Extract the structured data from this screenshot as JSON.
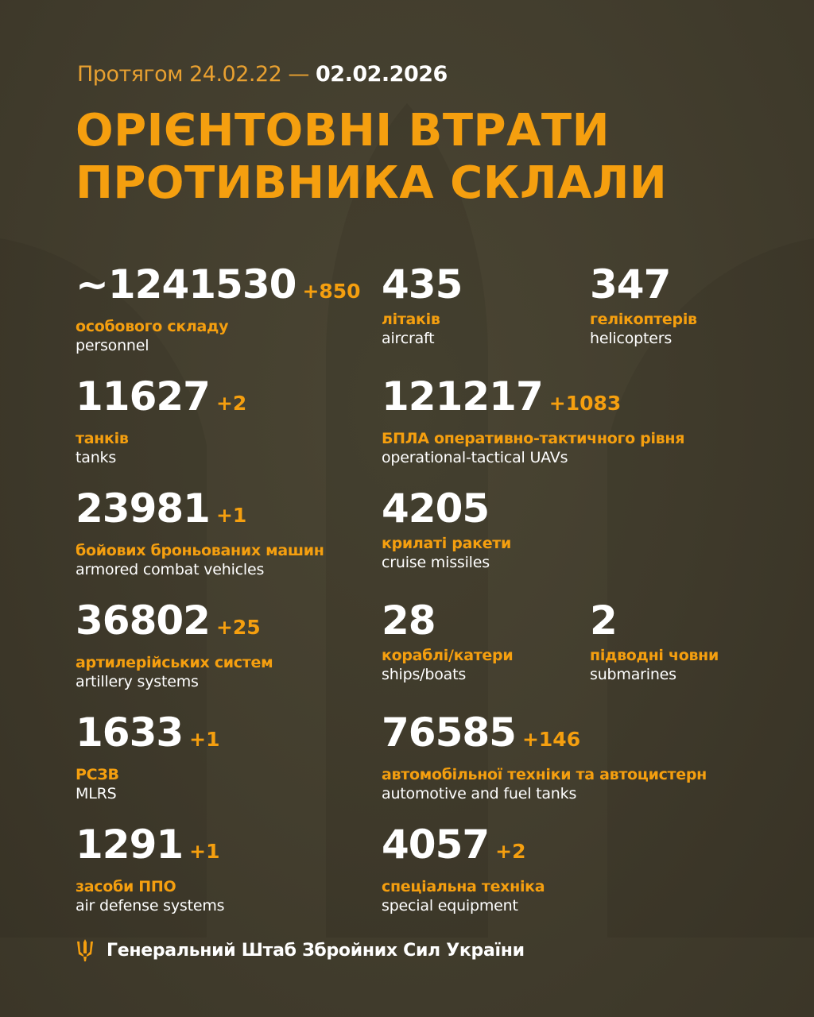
{
  "header": {
    "prefix": "Протягом 24.02.22 —",
    "date": "02.02.2026",
    "title_line1": "ОРІЄНТОВНІ ВТРАТИ",
    "title_line2": "ПРОТИВНИКА СКЛАЛИ"
  },
  "stats": [
    {
      "value": "~1241530",
      "delta": "+850",
      "ua": "особового складу",
      "en": "personnel"
    },
    {
      "value": "435",
      "delta": "",
      "ua": "літаків",
      "en": "aircraft"
    },
    {
      "value": "347",
      "delta": "",
      "ua": "гелікоптерів",
      "en": "helicopters"
    },
    {
      "value": "11627",
      "delta": "+2",
      "ua": "танків",
      "en": "tanks"
    },
    {
      "value": "121217",
      "delta": "+1083",
      "ua": "БПЛА оперативно-тактичного рівня",
      "en": "operational-tactical UAVs"
    },
    {
      "value": "23981",
      "delta": "+1",
      "ua": "бойових броньованих машин",
      "en": "armored combat vehicles"
    },
    {
      "value": "4205",
      "delta": "",
      "ua": "крилаті ракети",
      "en": "cruise missiles"
    },
    {
      "value": "36802",
      "delta": "+25",
      "ua": "артилерійських систем",
      "en": "artillery systems"
    },
    {
      "value": "28",
      "delta": "",
      "ua": "кораблі/катери",
      "en": "ships/boats"
    },
    {
      "value": "2",
      "delta": "",
      "ua": "підводні човни",
      "en": "submarines"
    },
    {
      "value": "1633",
      "delta": "+1",
      "ua": "РСЗВ",
      "en": "MLRS"
    },
    {
      "value": "76585",
      "delta": "+146",
      "ua": "автомобільної техніки та автоцистерн",
      "en": "automotive and fuel tanks"
    },
    {
      "value": "1291",
      "delta": "+1",
      "ua": "засоби ППО",
      "en": "air defense systems"
    },
    {
      "value": "4057",
      "delta": "+2",
      "ua": "спеціальна техніка",
      "en": "special equipment"
    }
  ],
  "footer": {
    "icon": "trident-icon",
    "text": "Генеральний Штаб Збройних Сил України"
  },
  "colors": {
    "accent": "#f59f0f",
    "background": "#433e2e",
    "text": "#ffffff"
  }
}
